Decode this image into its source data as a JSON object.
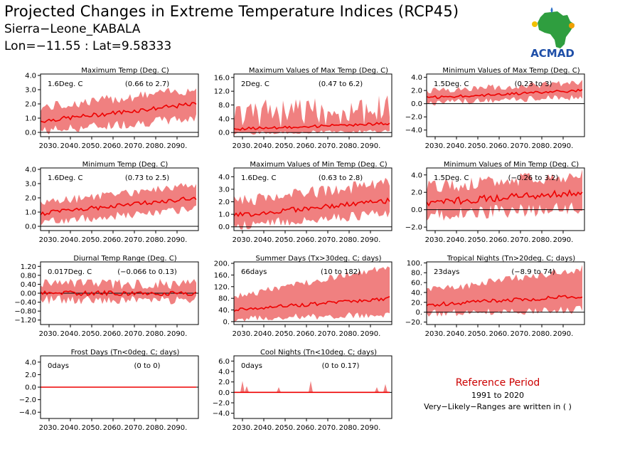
{
  "header": {
    "title": "Projected Changes in Extreme Temperature Indices (RCP45)",
    "subtitle": "Sierra−Leone_KABALA",
    "coords": "Lon=−11.55 : Lat=9.58333"
  },
  "logo": {
    "text": "ACMAD",
    "icon": "africa-map-logo"
  },
  "reference": {
    "title": "Reference Period",
    "years": "1991 to 2020",
    "note": "Very−Likely−Ranges are written in ( )"
  },
  "colors": {
    "band": "#f08080",
    "line": "#ee0000",
    "zero": "#000000"
  },
  "chart_data": [
    {
      "type": "area",
      "title": "Maximum Temp (Deg. C)",
      "value_label": "1.6Deg. C",
      "range_label": "(0.66 to 2.7)",
      "xticks": [
        "2030.",
        "2040.",
        "2050.",
        "2060.",
        "2070.",
        "2080.",
        "2090."
      ],
      "xlim": [
        2026,
        2100
      ],
      "yticks": [
        "0.0",
        "1.0",
        "2.0",
        "3.0",
        "4.0"
      ],
      "yticks_num": [
        0,
        1,
        2,
        3,
        4
      ],
      "ylim": [
        -0.3,
        4.1
      ],
      "series": [
        {
          "start": 0.8,
          "end": 2.0,
          "amp": 0.15
        },
        {
          "start": 0.1,
          "end": 1.0,
          "amp": 0.35
        },
        {
          "start": 1.6,
          "end": 2.9,
          "amp": 0.35
        }
      ]
    },
    {
      "type": "area",
      "title": "Maximum Values of Max Temp (Deg. C)",
      "value_label": "2Deg. C",
      "range_label": "(0.47 to 6.2)",
      "xticks": [
        "2030.",
        "2040.",
        "2050.",
        "2060.",
        "2070.",
        "2080.",
        "2090."
      ],
      "xlim": [
        2026,
        2100
      ],
      "yticks": [
        "0.0",
        "4.0",
        "8.0",
        "12.0",
        "16.0"
      ],
      "yticks_num": [
        0,
        4,
        8,
        12,
        16
      ],
      "ylim": [
        -1.2,
        17.0
      ],
      "series": [
        {
          "start": 1.0,
          "end": 2.6,
          "amp": 0.4
        },
        {
          "start": -0.2,
          "end": 0.4,
          "amp": 0.5
        },
        {
          "start": 3.0,
          "end": 5.0,
          "amp": 4.5
        }
      ]
    },
    {
      "type": "area",
      "title": "Minimum Values of Max Temp (Deg. C)",
      "value_label": "1.5Deg. C",
      "range_label": "(0.23 to 3)",
      "xticks": [
        "2030.",
        "2040.",
        "2050.",
        "2060.",
        "2070.",
        "2080.",
        "2090."
      ],
      "xlim": [
        2026,
        2100
      ],
      "yticks": [
        "−4.0",
        "−2.0",
        "0.0",
        "2.0",
        "4.0"
      ],
      "yticks_num": [
        -4,
        -2,
        0,
        2,
        4
      ],
      "ylim": [
        -5.0,
        4.5
      ],
      "series": [
        {
          "start": 0.9,
          "end": 2.0,
          "amp": 0.2
        },
        {
          "start": 0.1,
          "end": 1.0,
          "amp": 0.5
        },
        {
          "start": 1.8,
          "end": 3.0,
          "amp": 0.5
        }
      ]
    },
    {
      "type": "area",
      "title": "Minimum Temp (Deg. C)",
      "value_label": "1.6Deg. C",
      "range_label": "(0.73 to 2.5)",
      "xticks": [
        "2030.",
        "2040.",
        "2050.",
        "2060.",
        "2070.",
        "2080.",
        "2090."
      ],
      "xlim": [
        2026,
        2100
      ],
      "yticks": [
        "0.0",
        "1.0",
        "2.0",
        "3.0",
        "4.0"
      ],
      "yticks_num": [
        0,
        1,
        2,
        3,
        4
      ],
      "ylim": [
        -0.3,
        4.1
      ],
      "series": [
        {
          "start": 0.9,
          "end": 2.0,
          "amp": 0.15
        },
        {
          "start": 0.3,
          "end": 1.2,
          "amp": 0.3
        },
        {
          "start": 1.5,
          "end": 2.8,
          "amp": 0.3
        }
      ]
    },
    {
      "type": "area",
      "title": "Maximum Values of Min Temp (Deg. C)",
      "value_label": "1.6Deg. C",
      "range_label": "(0.63 to 2.8)",
      "xticks": [
        "2030.",
        "2040.",
        "2050.",
        "2060.",
        "2070.",
        "2080.",
        "2090."
      ],
      "xlim": [
        2026,
        2100
      ],
      "yticks": [
        "0.0",
        "1.0",
        "2.0",
        "3.0",
        "4.0"
      ],
      "yticks_num": [
        0,
        1,
        2,
        3,
        4
      ],
      "ylim": [
        -0.3,
        4.7
      ],
      "series": [
        {
          "start": 0.9,
          "end": 2.1,
          "amp": 0.2
        },
        {
          "start": 0.1,
          "end": 1.1,
          "amp": 0.4
        },
        {
          "start": 1.8,
          "end": 3.3,
          "amp": 0.5
        }
      ]
    },
    {
      "type": "area",
      "title": "Minimum Values of Min Temp (Deg. C)",
      "value_label": "1.5Deg. C",
      "range_label": "(−0.26 to 3.2)",
      "xticks": [
        "2030.",
        "2040.",
        "2050.",
        "2060.",
        "2070.",
        "2080.",
        "2090."
      ],
      "xlim": [
        2026,
        2100
      ],
      "yticks": [
        "−2.0",
        "0.0",
        "2.0",
        "4.0"
      ],
      "yticks_num": [
        -2,
        0,
        2,
        4
      ],
      "ylim": [
        -2.4,
        4.8
      ],
      "series": [
        {
          "start": 0.8,
          "end": 2.0,
          "amp": 0.4
        },
        {
          "start": -0.6,
          "end": 0.2,
          "amp": 0.8
        },
        {
          "start": 2.3,
          "end": 3.6,
          "amp": 0.8
        }
      ]
    },
    {
      "type": "area",
      "title": "Diurnal Temp Range (Deg. C)",
      "value_label": "0.017Deg. C",
      "range_label": "(−0.066 to 0.13)",
      "xticks": [
        "2030.",
        "2040.",
        "2050.",
        "2060.",
        "2070.",
        "2080.",
        "2090."
      ],
      "xlim": [
        2026,
        2100
      ],
      "yticks": [
        "−1.20",
        "−0.80",
        "−0.40",
        "0.00",
        "0.40",
        "0.80",
        "1.20"
      ],
      "yticks_num": [
        -1.2,
        -0.8,
        -0.4,
        0,
        0.4,
        0.8,
        1.2
      ],
      "ylim": [
        -1.4,
        1.4
      ],
      "series": [
        {
          "start": 0.0,
          "end": 0.0,
          "amp": 0.1
        },
        {
          "start": -0.3,
          "end": -0.3,
          "amp": 0.2
        },
        {
          "start": 0.3,
          "end": 0.3,
          "amp": 0.25
        }
      ]
    },
    {
      "type": "area",
      "title": "Summer Days (Tx>30deg. C; days)",
      "value_label": "66days",
      "range_label": "(10 to 182)",
      "xticks": [
        "2030.",
        "2040.",
        "2050.",
        "2060.",
        "2070.",
        "2080.",
        "2090."
      ],
      "xlim": [
        2026,
        2100
      ],
      "yticks": [
        "0.",
        "40.",
        "80.",
        "120.",
        "160.",
        "200."
      ],
      "yticks_num": [
        0,
        40,
        80,
        120,
        160,
        200
      ],
      "ylim": [
        -10,
        205
      ],
      "series": [
        {
          "start": 40,
          "end": 80,
          "amp": 6
        },
        {
          "start": 10,
          "end": 25,
          "amp": 12
        },
        {
          "start": 80,
          "end": 185,
          "amp": 12
        }
      ]
    },
    {
      "type": "area",
      "title": "Tropical Nights (Tn>20deg. C; days)",
      "value_label": "23days",
      "range_label": "(−8.9 to 74)",
      "xticks": [
        "2030.",
        "2040.",
        "2050.",
        "2060.",
        "2070.",
        "2080.",
        "2090."
      ],
      "xlim": [
        2026,
        2100
      ],
      "yticks": [
        "−20.",
        "0.",
        "20.",
        "40.",
        "60.",
        "80.",
        "100."
      ],
      "yticks_num": [
        -20,
        0,
        20,
        40,
        60,
        80,
        100
      ],
      "ylim": [
        -25,
        102
      ],
      "series": [
        {
          "start": 15,
          "end": 33,
          "amp": 4
        },
        {
          "start": -3,
          "end": 5,
          "amp": 8
        },
        {
          "start": 40,
          "end": 85,
          "amp": 8
        }
      ]
    },
    {
      "type": "area",
      "title": "Frost Days (Tn<0deg. C; days)",
      "value_label": "0days",
      "range_label": "(0 to 0)",
      "xticks": [
        "2030.",
        "2040.",
        "2050.",
        "2060.",
        "2070.",
        "2080.",
        "2090."
      ],
      "xlim": [
        2026,
        2100
      ],
      "yticks": [
        "−4.0",
        "−2.0",
        "0.0",
        "2.0",
        "4.0"
      ],
      "yticks_num": [
        -4,
        -2,
        0,
        2,
        4
      ],
      "ylim": [
        -5.0,
        5.0
      ],
      "series": [
        {
          "start": 0,
          "end": 0,
          "amp": 0
        },
        {
          "start": 0,
          "end": 0,
          "amp": 0
        },
        {
          "start": 0,
          "end": 0,
          "amp": 0
        }
      ]
    },
    {
      "type": "area",
      "title": "Cool Nights (Tn<10deg. C; days)",
      "value_label": "0days",
      "range_label": "(0 to 0.17)",
      "xticks": [
        "2030.",
        "2040.",
        "2050.",
        "2060.",
        "2070.",
        "2080.",
        "2090."
      ],
      "xlim": [
        2026,
        2100
      ],
      "yticks": [
        "−4.0",
        "−2.0",
        "0.0",
        "2.0",
        "4.0",
        "6.0"
      ],
      "yticks_num": [
        -4,
        -2,
        0,
        2,
        4,
        6
      ],
      "ylim": [
        -5.0,
        7.0
      ],
      "series": [
        {
          "start": 0,
          "end": 0,
          "amp": 0
        },
        {
          "start": 0,
          "end": 0,
          "amp": 0
        },
        {
          "start": 0,
          "end": 0,
          "amp": 0
        }
      ],
      "spikes": [
        [
          2030,
          2.2
        ],
        [
          2032,
          1.2
        ],
        [
          2047,
          1.0
        ],
        [
          2062,
          2.2
        ],
        [
          2093,
          1.0
        ],
        [
          2097,
          1.6
        ]
      ]
    }
  ]
}
